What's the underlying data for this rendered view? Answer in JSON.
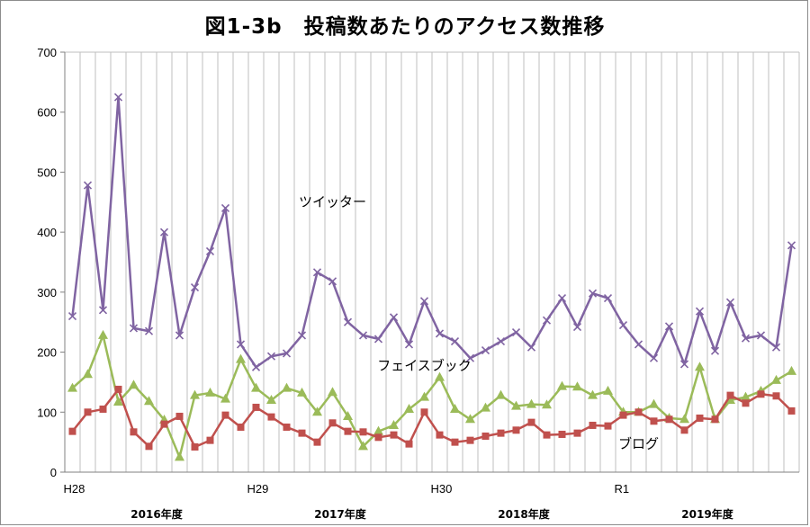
{
  "chart_data": {
    "type": "line",
    "title": "図1-3b　投稿数あたりのアクセス数推移",
    "ylim": [
      0,
      700
    ],
    "y_ticks": [
      0,
      100,
      200,
      300,
      400,
      500,
      600,
      700
    ],
    "grid": {
      "vertical": true,
      "horizontal": false
    },
    "x_count": 48,
    "x_tick_labels": [
      {
        "index": 0,
        "label": "H28"
      },
      {
        "index": 12,
        "label": "H29"
      },
      {
        "index": 24,
        "label": "H30"
      },
      {
        "index": 36,
        "label": "R1"
      }
    ],
    "period_labels": [
      {
        "center_index": 6,
        "label": "2016年度"
      },
      {
        "center_index": 18,
        "label": "2017年度"
      },
      {
        "center_index": 30,
        "label": "2018年度"
      },
      {
        "center_index": 42,
        "label": "2019年度"
      }
    ],
    "series": [
      {
        "name": "ツイッター",
        "color": "#8064a2",
        "marker": "x",
        "label_at": {
          "index": 17,
          "value": 443
        },
        "values": [
          260,
          478,
          270,
          625,
          240,
          235,
          400,
          228,
          308,
          368,
          440,
          213,
          175,
          193,
          198,
          228,
          333,
          318,
          250,
          228,
          222,
          258,
          213,
          285,
          231,
          218,
          190,
          203,
          218,
          233,
          208,
          253,
          290,
          242,
          298,
          290,
          245,
          213,
          190,
          243,
          180,
          268,
          202,
          283,
          223,
          228,
          208,
          378
        ]
      },
      {
        "name": "フェイスブック",
        "color": "#9bbb59",
        "marker": "triangle",
        "label_at": {
          "index": 23,
          "value": 170
        },
        "values": [
          140,
          163,
          228,
          117,
          145,
          118,
          87,
          25,
          128,
          132,
          122,
          188,
          140,
          120,
          140,
          132,
          100,
          133,
          93,
          43,
          68,
          78,
          105,
          125,
          158,
          105,
          88,
          107,
          128,
          110,
          113,
          112,
          143,
          142,
          128,
          135,
          100,
          100,
          113,
          90,
          88,
          175,
          88,
          120,
          125,
          135,
          153,
          168
        ]
      },
      {
        "name": "ブログ",
        "color": "#c0504d",
        "marker": "square",
        "label_at": {
          "index": 37,
          "value": 40
        },
        "values": [
          68,
          100,
          105,
          138,
          67,
          43,
          80,
          93,
          42,
          53,
          95,
          75,
          108,
          92,
          75,
          65,
          50,
          82,
          68,
          67,
          58,
          62,
          47,
          100,
          62,
          50,
          53,
          60,
          65,
          70,
          83,
          62,
          63,
          65,
          78,
          77,
          95,
          100,
          85,
          88,
          70,
          90,
          88,
          128,
          115,
          130,
          127,
          102
        ]
      }
    ]
  }
}
